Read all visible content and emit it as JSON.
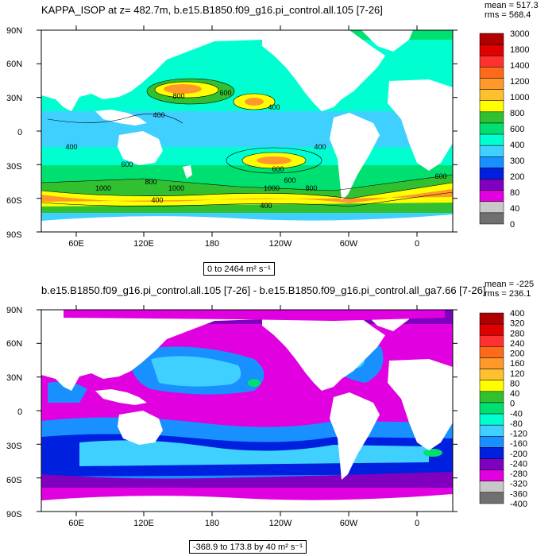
{
  "panels": [
    {
      "title": "KAPPA_ISOP at z= 482.7m, b.e15.B1850.f09_g16.pi_control.all.105 [7-26]",
      "mean": "mean = 517.3",
      "rms": "rms = 568.4",
      "range": "0 to 2464 m² s⁻¹",
      "lat_labels": [
        "90N",
        "60N",
        "30N",
        "0",
        "30S",
        "60S",
        "90S"
      ],
      "lon_labels": [
        "60E",
        "120E",
        "180",
        "120W",
        "60W",
        "0"
      ],
      "colorbar": {
        "labels": [
          "3000",
          "1800",
          "1400",
          "1200",
          "1000",
          "800",
          "600",
          "400",
          "300",
          "200",
          "80",
          "40",
          "0"
        ],
        "colors": [
          "#b00000",
          "#e00000",
          "#ff3030",
          "#ff6a1a",
          "#ff9a2a",
          "#ffc030",
          "#ffff00",
          "#30c030",
          "#00e070",
          "#00ffd0",
          "#40d0ff",
          "#1890ff",
          "#0020e0",
          "#8000c0",
          "#e000e0",
          "#c8c8c8",
          "#707070"
        ]
      },
      "contour_labels": [
        "800",
        "600",
        "400",
        "400",
        "600",
        "400",
        "600",
        "1000",
        "1000",
        "800",
        "1000",
        "600",
        "800",
        "400",
        "400",
        "600",
        "400"
      ]
    },
    {
      "title": "b.e15.B1850.f09_g16.pi_control.all.105 [7-26] - b.e15.B1850.f09_g16.pi_control.all_ga7.66 [7-26]",
      "mean": "mean = -225",
      "rms": "rms = 236.1",
      "range": "-368.9 to 173.8 by 40 m² s⁻¹",
      "lat_labels": [
        "90N",
        "60N",
        "30N",
        "0",
        "30S",
        "60S",
        "90S"
      ],
      "lon_labels": [
        "60E",
        "120E",
        "180",
        "120W",
        "60W",
        "0"
      ],
      "colorbar": {
        "labels": [
          "400",
          "320",
          "280",
          "240",
          "200",
          "160",
          "120",
          "80",
          "40",
          "0",
          "-40",
          "-80",
          "-120",
          "-160",
          "-200",
          "-240",
          "-280",
          "-320",
          "-360",
          "-400"
        ],
        "colors": [
          "#b00000",
          "#e00000",
          "#ff3030",
          "#ff6a1a",
          "#ff9a2a",
          "#ffc030",
          "#ffff00",
          "#30c030",
          "#00e070",
          "#00ffd0",
          "#40d0ff",
          "#1890ff",
          "#0020e0",
          "#8000c0",
          "#e000e0",
          "#c8c8c8",
          "#707070"
        ]
      }
    }
  ]
}
